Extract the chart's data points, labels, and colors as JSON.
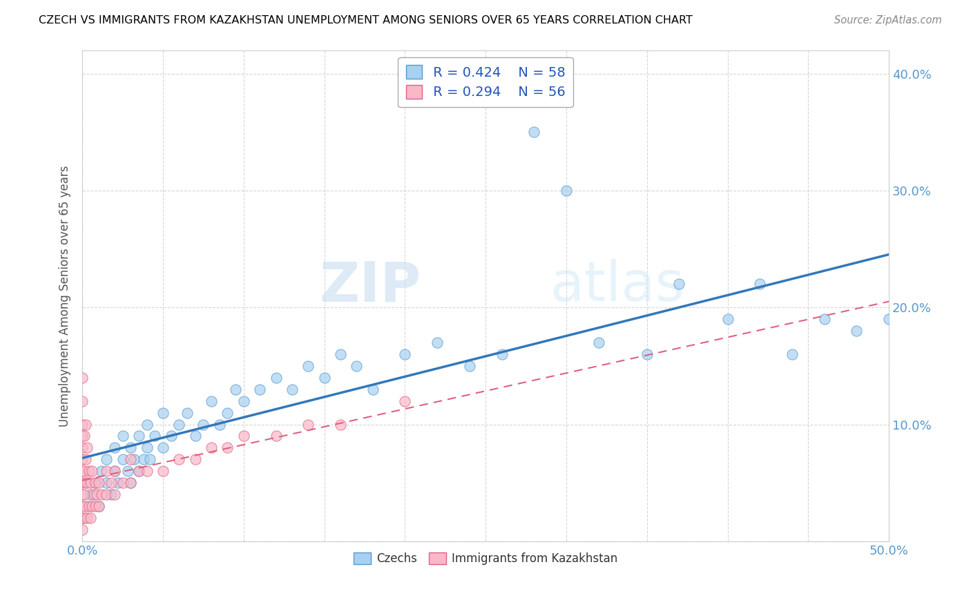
{
  "title": "CZECH VS IMMIGRANTS FROM KAZAKHSTAN UNEMPLOYMENT AMONG SENIORS OVER 65 YEARS CORRELATION CHART",
  "source": "Source: ZipAtlas.com",
  "ylabel": "Unemployment Among Seniors over 65 years",
  "xlim": [
    0,
    0.5
  ],
  "ylim": [
    0,
    0.42
  ],
  "legend_r1": "R = 0.424",
  "legend_n1": "N = 58",
  "legend_r2": "R = 0.294",
  "legend_n2": "N = 56",
  "color_czech_fill": "#a8d0f0",
  "color_czech_edge": "#5599cc",
  "color_kaz_fill": "#f8b8c8",
  "color_kaz_edge": "#e06080",
  "color_line_czech": "#3377bb",
  "color_line_kaz": "#e06080",
  "watermark_zip": "ZIP",
  "watermark_atlas": "atlas",
  "tick_color": "#5599cc",
  "grid_color": "#cccccc",
  "czech_x": [
    0.005,
    0.008,
    0.01,
    0.012,
    0.015,
    0.015,
    0.018,
    0.02,
    0.02,
    0.022,
    0.025,
    0.025,
    0.028,
    0.03,
    0.03,
    0.032,
    0.035,
    0.035,
    0.038,
    0.04,
    0.04,
    0.042,
    0.045,
    0.05,
    0.05,
    0.055,
    0.06,
    0.065,
    0.07,
    0.075,
    0.08,
    0.085,
    0.09,
    0.095,
    0.1,
    0.11,
    0.12,
    0.13,
    0.14,
    0.15,
    0.16,
    0.17,
    0.18,
    0.2,
    0.22,
    0.24,
    0.26,
    0.28,
    0.3,
    0.32,
    0.35,
    0.37,
    0.4,
    0.42,
    0.44,
    0.46,
    0.48,
    0.5
  ],
  "czech_y": [
    0.04,
    0.05,
    0.03,
    0.06,
    0.05,
    0.07,
    0.04,
    0.06,
    0.08,
    0.05,
    0.07,
    0.09,
    0.06,
    0.05,
    0.08,
    0.07,
    0.06,
    0.09,
    0.07,
    0.08,
    0.1,
    0.07,
    0.09,
    0.08,
    0.11,
    0.09,
    0.1,
    0.11,
    0.09,
    0.1,
    0.12,
    0.1,
    0.11,
    0.13,
    0.12,
    0.13,
    0.14,
    0.13,
    0.15,
    0.14,
    0.16,
    0.15,
    0.13,
    0.16,
    0.17,
    0.15,
    0.16,
    0.35,
    0.3,
    0.17,
    0.16,
    0.22,
    0.19,
    0.22,
    0.16,
    0.19,
    0.18,
    0.19
  ],
  "kaz_x": [
    0.0,
    0.0,
    0.0,
    0.0,
    0.0,
    0.0,
    0.0,
    0.0,
    0.0,
    0.0,
    0.0,
    0.0,
    0.001,
    0.001,
    0.001,
    0.001,
    0.002,
    0.002,
    0.002,
    0.002,
    0.003,
    0.003,
    0.003,
    0.004,
    0.004,
    0.005,
    0.005,
    0.006,
    0.006,
    0.007,
    0.008,
    0.008,
    0.009,
    0.01,
    0.01,
    0.012,
    0.015,
    0.015,
    0.018,
    0.02,
    0.02,
    0.025,
    0.03,
    0.03,
    0.035,
    0.04,
    0.05,
    0.06,
    0.07,
    0.08,
    0.09,
    0.1,
    0.12,
    0.14,
    0.16,
    0.2
  ],
  "kaz_y": [
    0.01,
    0.02,
    0.03,
    0.04,
    0.05,
    0.06,
    0.07,
    0.08,
    0.09,
    0.1,
    0.12,
    0.14,
    0.02,
    0.04,
    0.06,
    0.09,
    0.03,
    0.05,
    0.07,
    0.1,
    0.02,
    0.05,
    0.08,
    0.03,
    0.06,
    0.02,
    0.05,
    0.03,
    0.06,
    0.04,
    0.03,
    0.05,
    0.04,
    0.03,
    0.05,
    0.04,
    0.04,
    0.06,
    0.05,
    0.04,
    0.06,
    0.05,
    0.05,
    0.07,
    0.06,
    0.06,
    0.06,
    0.07,
    0.07,
    0.08,
    0.08,
    0.09,
    0.09,
    0.1,
    0.1,
    0.12
  ]
}
